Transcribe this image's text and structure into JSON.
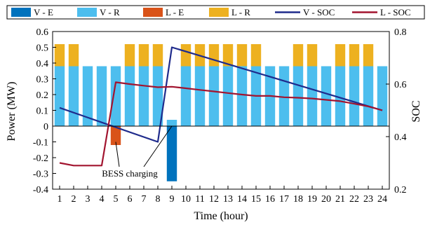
{
  "chart_data": {
    "type": "bar",
    "title": "",
    "xlabel": "Time (hour)",
    "ylabel": "Power (MW)",
    "y2label": "SOC",
    "ylim": [
      -0.4,
      0.6
    ],
    "y2lim": [
      0.2,
      0.8
    ],
    "yticks": [
      -0.4,
      -0.3,
      -0.2,
      -0.1,
      0,
      0.1,
      0.2,
      0.3,
      0.4,
      0.5,
      0.6
    ],
    "y2ticks": [
      0.2,
      0.4,
      0.6,
      0.8
    ],
    "x": [
      1,
      2,
      3,
      4,
      5,
      6,
      7,
      8,
      9,
      10,
      11,
      12,
      13,
      14,
      15,
      16,
      17,
      18,
      19,
      20,
      21,
      22,
      23,
      24
    ],
    "legend_position": "top",
    "grid": false,
    "series": [
      {
        "name": "V - E",
        "kind": "bar",
        "axis": "left",
        "color": "#0072bd",
        "values": [
          0,
          0,
          0,
          0,
          0,
          0,
          0,
          0,
          -0.35,
          0,
          0,
          0,
          0,
          0,
          0,
          0,
          0,
          0,
          0,
          0,
          0,
          0,
          0,
          0
        ]
      },
      {
        "name": "V - R",
        "kind": "bar",
        "axis": "left",
        "color": "#4dbeee",
        "values": [
          0.38,
          0.38,
          0.38,
          0.38,
          0.38,
          0.38,
          0.38,
          0.38,
          0.04,
          0.38,
          0.38,
          0.38,
          0.38,
          0.38,
          0.38,
          0.38,
          0.38,
          0.38,
          0.38,
          0.38,
          0.38,
          0.38,
          0.38,
          0.38
        ]
      },
      {
        "name": "L - E",
        "kind": "bar",
        "axis": "left",
        "color": "#d95319",
        "values": [
          0,
          0,
          0,
          0,
          -0.12,
          0,
          0,
          0,
          0,
          0,
          0,
          0,
          0,
          0,
          0,
          0,
          0,
          0,
          0,
          0,
          0,
          0,
          0,
          0
        ]
      },
      {
        "name": "L - R",
        "kind": "bar",
        "axis": "left",
        "color": "#edb120",
        "stacked_on": "V - R",
        "values": [
          0.14,
          0.14,
          0,
          0,
          0,
          0.14,
          0.14,
          0.14,
          0,
          0.14,
          0.14,
          0.14,
          0.14,
          0.14,
          0.14,
          0,
          0,
          0.14,
          0.14,
          0,
          0.14,
          0.14,
          0.14,
          0
        ]
      },
      {
        "name": "V - SOC",
        "kind": "line",
        "axis": "right",
        "color": "#1f2b8c",
        "points": [
          [
            1,
            0.51
          ],
          [
            8,
            0.38
          ],
          [
            9,
            0.74
          ],
          [
            24,
            0.5
          ]
        ]
      },
      {
        "name": "L - SOC",
        "kind": "line",
        "axis": "right",
        "color": "#a2142f",
        "points": [
          [
            1,
            0.3
          ],
          [
            2,
            0.29
          ],
          [
            3,
            0.29
          ],
          [
            4,
            0.29
          ],
          [
            5,
            0.607
          ],
          [
            6,
            0.6
          ],
          [
            7,
            0.594
          ],
          [
            8,
            0.588
          ],
          [
            9,
            0.59
          ],
          [
            10,
            0.584
          ],
          [
            11,
            0.578
          ],
          [
            12,
            0.572
          ],
          [
            13,
            0.566
          ],
          [
            14,
            0.56
          ],
          [
            15,
            0.555
          ],
          [
            16,
            0.555
          ],
          [
            17,
            0.55
          ],
          [
            18,
            0.548
          ],
          [
            19,
            0.545
          ],
          [
            20,
            0.54
          ],
          [
            21,
            0.535
          ],
          [
            22,
            0.525
          ],
          [
            23,
            0.515
          ],
          [
            24,
            0.5
          ]
        ]
      }
    ],
    "annotations": [
      {
        "text": "BESS charging",
        "arrow_targets": [
          [
            5,
            -0.1
          ],
          [
            9,
            0
          ]
        ]
      }
    ]
  }
}
